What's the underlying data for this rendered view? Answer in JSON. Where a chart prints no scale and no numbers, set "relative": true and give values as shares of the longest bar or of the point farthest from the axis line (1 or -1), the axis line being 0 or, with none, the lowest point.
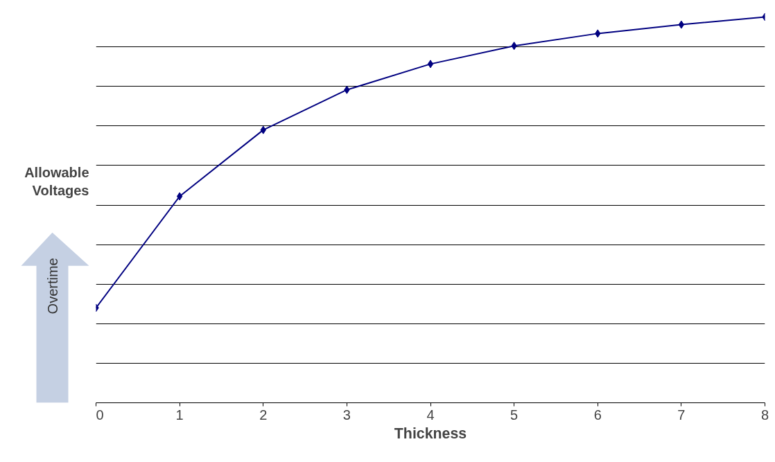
{
  "chart_data": {
    "type": "line",
    "relative": true,
    "xlabel": "Thickness",
    "ylabel": "Allowable Voltages",
    "annotations": [
      "Overtime"
    ],
    "x": [
      0,
      1,
      2,
      3,
      4,
      5,
      6,
      7,
      8
    ],
    "series": [
      {
        "color": "#000080",
        "values": [
          0.246,
          0.535,
          0.707,
          0.811,
          0.878,
          0.925,
          0.957,
          0.98,
          1.0
        ]
      }
    ],
    "xlim": [
      0,
      8
    ],
    "xticks": [
      0,
      1,
      2,
      3,
      4,
      5,
      6,
      7,
      8
    ],
    "grid": "y",
    "marker": "diamond",
    "line_style": "solid"
  }
}
